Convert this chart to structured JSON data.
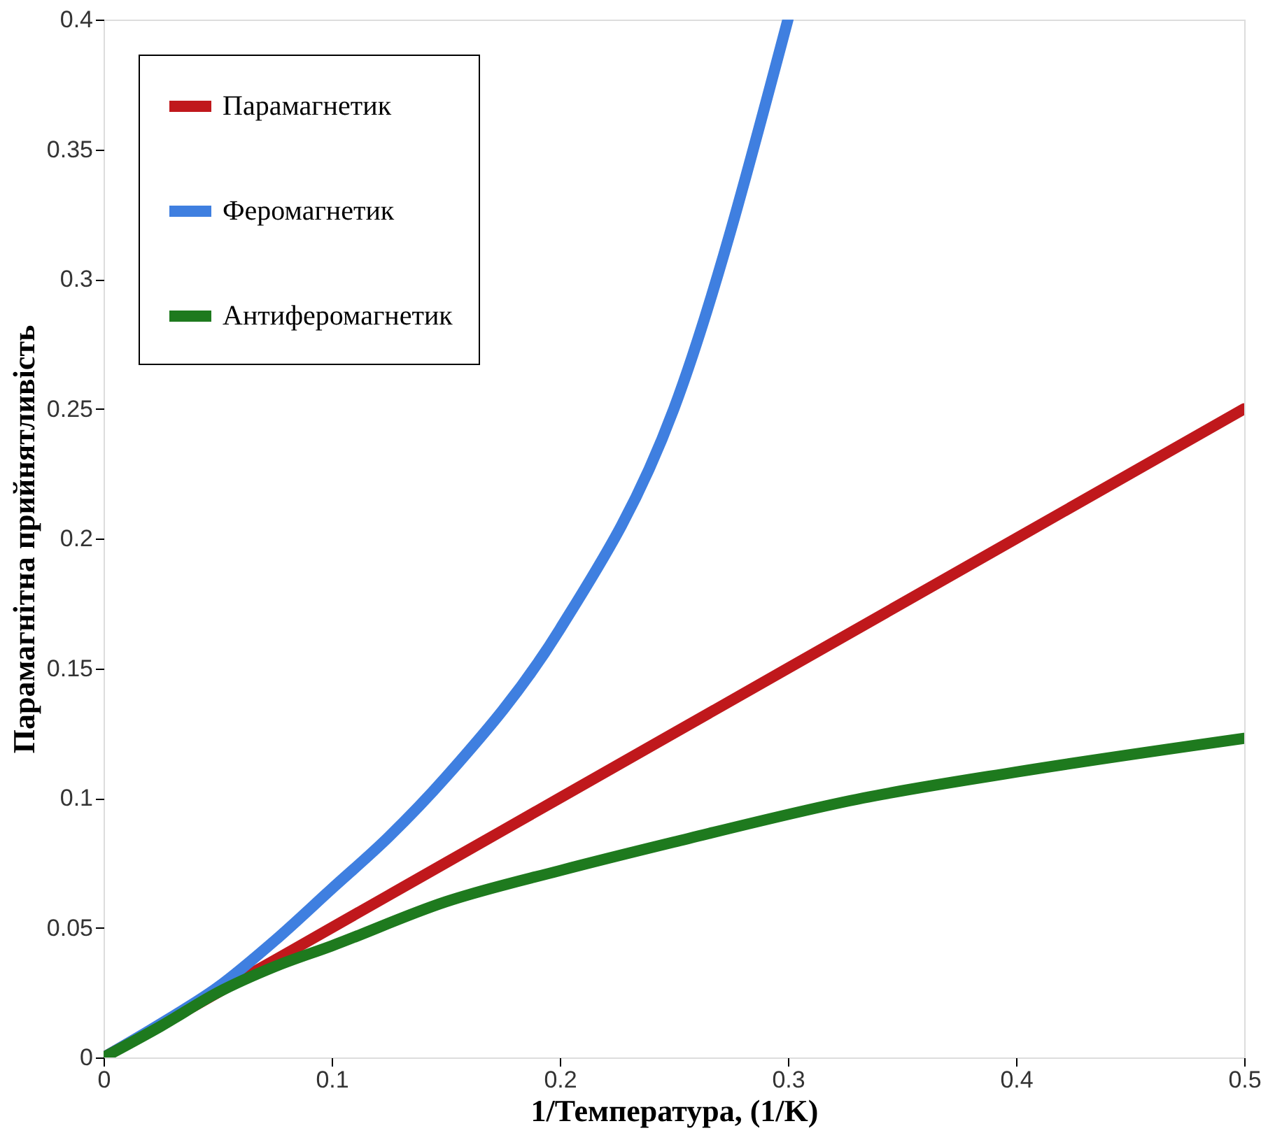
{
  "chart_data": {
    "type": "line",
    "xlabel": "1/Температура, (1/K)",
    "ylabel": "Парамагнітна прийнятливість",
    "xlim": [
      0,
      0.5
    ],
    "ylim": [
      0,
      0.4
    ],
    "xticks": [
      0,
      0.1,
      0.2,
      0.3,
      0.4,
      0.5
    ],
    "yticks": [
      0,
      0.05,
      0.1,
      0.15,
      0.2,
      0.25,
      0.3,
      0.35,
      0.4
    ],
    "grid": false,
    "legend": "top left",
    "marker": "none",
    "line_style": "solid",
    "series": [
      {
        "name": "Парамагнетик",
        "color": "#c0181c",
        "x": [
          0,
          0.05,
          0.075,
          0.1,
          0.15,
          0.2,
          0.3,
          0.4,
          0.5
        ],
        "values": [
          0,
          0.025,
          0.0375,
          0.05,
          0.075,
          0.1,
          0.15,
          0.2,
          0.25
        ]
      },
      {
        "name": "Феромагнетик",
        "color": "#3f7fe0",
        "x": [
          0,
          0.025,
          0.05,
          0.075,
          0.1,
          0.125,
          0.15,
          0.2,
          0.25,
          0.3
        ],
        "values": [
          0,
          0.013,
          0.027,
          0.045,
          0.065,
          0.085,
          0.108,
          0.165,
          0.25,
          0.4
        ]
      },
      {
        "name": "Антиферомагнетик",
        "color": "#1e7a1e",
        "x": [
          0,
          0.025,
          0.05,
          0.075,
          0.1,
          0.15,
          0.2,
          0.25,
          0.333,
          0.4,
          0.5
        ],
        "values": [
          0,
          0.012,
          0.025,
          0.035,
          0.043,
          0.06,
          0.072,
          0.083,
          0.1,
          0.11,
          0.123
        ]
      }
    ]
  }
}
